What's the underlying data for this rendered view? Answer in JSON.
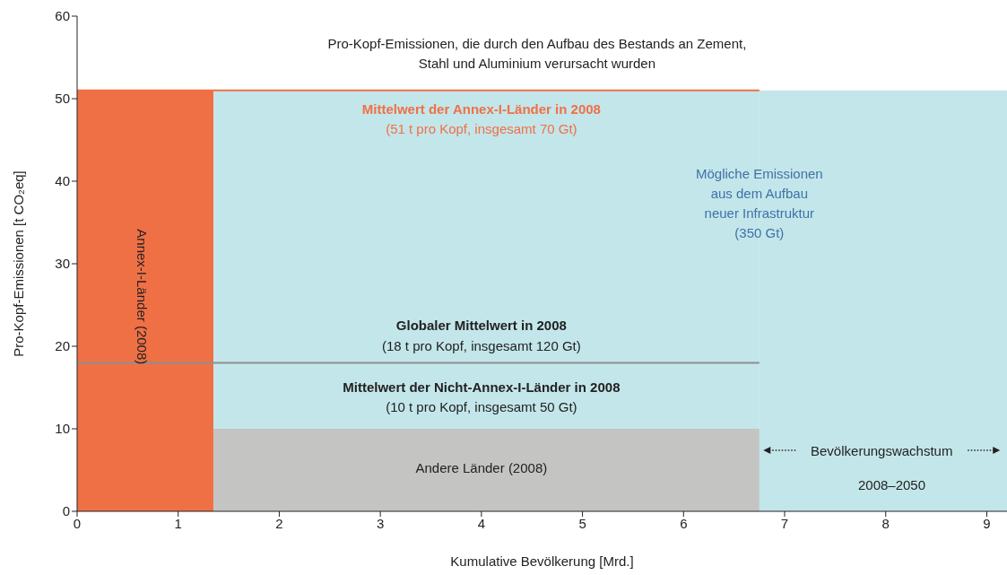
{
  "chart_data": {
    "type": "area",
    "xlabel": "Kumulative Bevölkerung [Mrd.]",
    "ylabel": "Pro-Kopf-Emissionen [t CO₂eq]",
    "xlim": [
      0,
      9.2
    ],
    "xticks": [
      0,
      1,
      2,
      3,
      4,
      5,
      6,
      7,
      8,
      9
    ],
    "ylim": [
      0,
      60
    ],
    "yticks": [
      0,
      10,
      20,
      30,
      40,
      50,
      60
    ],
    "series": [
      {
        "color": "#f07046",
        "x": [
          0,
          1.35
        ],
        "values": [
          51,
          51
        ]
      },
      {
        "color": "#c3e6ea",
        "x": [
          1.35,
          6.75
        ],
        "values": [
          51,
          51
        ]
      },
      {
        "color": "#c4c4c3",
        "x": [
          1.35,
          6.75
        ],
        "values": [
          10,
          10
        ]
      },
      {
        "color": "#c3e6ea",
        "x": [
          6.75,
          9.2
        ],
        "values": [
          51,
          51
        ]
      },
      {
        "type": "line",
        "color": "#8e8e8e",
        "x": [
          0,
          6.75
        ],
        "values": [
          18,
          18
        ]
      },
      {
        "type": "line",
        "color": "#f07046",
        "x": [
          0,
          6.75
        ],
        "values": [
          51,
          51
        ]
      }
    ],
    "annotations": [
      "Pro-Kopf-Emissionen, die durch den Aufbau des Bestands an Zement, Stahl und Aluminium verursacht wurden",
      "Mittelwert der Annex-I-Länder in 2008",
      "(51 t pro Kopf, insgesamt 70 Gt)",
      "Mögliche Emissionen aus dem Aufbau neuer Infrastruktur (350 Gt)",
      "Annex-I-Länder (2008)",
      "Globaler Mittelwert in 2008",
      "(18 t pro Kopf, insgesamt 120 Gt)",
      "Mittelwert der Nicht-Annex-I-Länder in 2008",
      "(10 t pro Kopf, insgesamt 50 Gt)",
      "Andere Länder (2008)",
      "Bevölkerungswachstum",
      "2008–2050"
    ]
  }
}
